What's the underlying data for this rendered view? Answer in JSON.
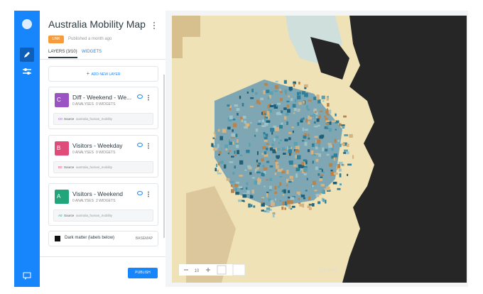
{
  "sidebar": {
    "title": "Australia Mobility Map",
    "badge": "LINK",
    "published": "Published a month ago",
    "tabs": [
      "LAYERS (3/10)",
      "WIDGETS"
    ],
    "add_layer": "ADD NEW LAYER",
    "layers": [
      {
        "letter": "C",
        "color": "#9b52c3",
        "name": "Diff - Weekend - We...",
        "analyses": "0 ANALYSES",
        "widgets": "0 WIDGETS",
        "node": "C0",
        "source_label": "Source",
        "source": "australia_human_mobility"
      },
      {
        "letter": "B",
        "color": "#e04b7a",
        "name": "Visitors - Weekday",
        "analyses": "0 ANALYSES",
        "widgets": "0 WIDGETS",
        "node": "B0",
        "source_label": "Source",
        "source": "australia_human_mobility"
      },
      {
        "letter": "A",
        "color": "#20a67a",
        "name": "Visitors - Weekend",
        "analyses": "0 ANALYSES",
        "widgets": "2 WIDGETS",
        "node": "A0",
        "source_label": "Source",
        "source": "australia_human_mobility"
      }
    ],
    "basemap": {
      "name": "Dark matter (labels below)",
      "label": "BASEMAP"
    },
    "publish": "PUBLISH"
  },
  "map": {
    "zoom": "10",
    "attribution": "CARTO"
  }
}
